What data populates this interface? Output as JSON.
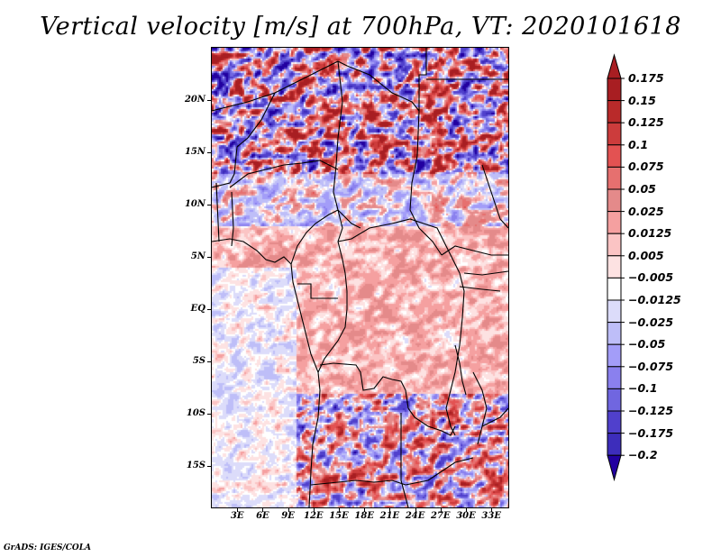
{
  "chart_data": {
    "type": "heatmap",
    "title": "Vertical velocity [m/s] at 700hPa, VT: 2020101618",
    "variable": "Vertical velocity",
    "units": "m/s",
    "level": "700hPa",
    "valid_time": "2020101618",
    "xlabel": "",
    "ylabel": "",
    "x_range_deg": [
      0,
      35
    ],
    "y_range_deg": [
      -19,
      25
    ],
    "x_ticks": [
      "3E",
      "6E",
      "9E",
      "12E",
      "15E",
      "18E",
      "21E",
      "24E",
      "27E",
      "30E",
      "33E"
    ],
    "x_tick_values": [
      3,
      6,
      9,
      12,
      15,
      18,
      21,
      24,
      27,
      30,
      33
    ],
    "y_ticks": [
      "20N",
      "15N",
      "10N",
      "5N",
      "EQ",
      "5S",
      "10S",
      "15S"
    ],
    "y_tick_values": [
      20,
      15,
      10,
      5,
      0,
      -5,
      -10,
      -15
    ],
    "grid": false,
    "legend_position": "right",
    "colorbar": {
      "levels": [
        "0.175",
        "0.15",
        "0.125",
        "0.1",
        "0.075",
        "0.05",
        "0.025",
        "0.0125",
        "0.005",
        "-0.005",
        "-0.0125",
        "-0.025",
        "-0.05",
        "-0.075",
        "-0.1",
        "-0.125",
        "-0.175",
        "-0.2"
      ],
      "colors": [
        "#a81e22",
        "#b92a2a",
        "#cc3c3c",
        "#e35252",
        "#e6706f",
        "#e48a8a",
        "#f5a0a0",
        "#fbc4c4",
        "#fde2e2",
        "#ffffff",
        "#dcdcfa",
        "#bebef8",
        "#a39df8",
        "#8a80ee",
        "#7066e0",
        "#5040cc",
        "#3d2dbb",
        "#2f20a8"
      ],
      "over_color": "#a81e22",
      "under_color": "#2200a0",
      "extend": "both"
    },
    "regions": {
      "sahara_north_of_15N": "strong alternating positive/negative (up to ±0.2)",
      "central_africa_0_to_10N": "weak positive (0.005–0.05) dominant",
      "atlantic_west": "weak negative (-0.005 to -0.05)",
      "angola_zambia_south_of_10S": "strong mixed positive/negative"
    }
  },
  "footer": "GrADS: IGES/COLA"
}
